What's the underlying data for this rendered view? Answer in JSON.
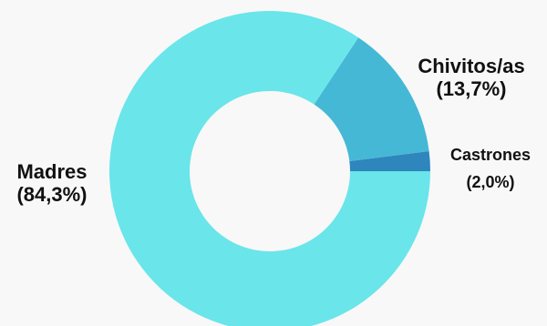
{
  "chart_data": {
    "type": "pie",
    "variant": "donut",
    "slices": [
      {
        "label": "Madres",
        "value": 84.3,
        "value_label": "(84,3%)",
        "color": "#6ae5ea"
      },
      {
        "label": "Chivitos/as",
        "value": 13.7,
        "value_label": "(13,7%)",
        "color": "#45b8d6"
      },
      {
        "label": "Castrones",
        "value": 2.0,
        "value_label": "(2,0%)",
        "color": "#2e86bd"
      }
    ],
    "legend": "none"
  }
}
